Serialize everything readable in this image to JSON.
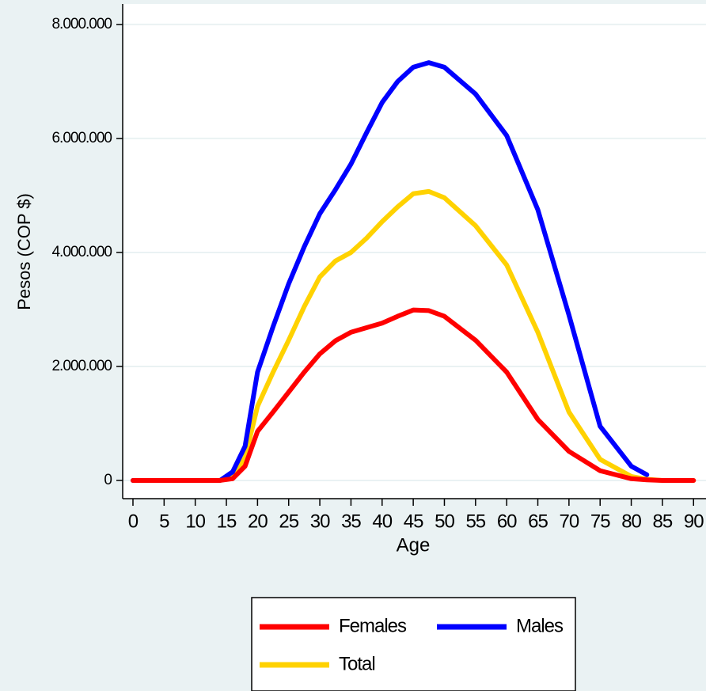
{
  "chart_data": {
    "type": "line",
    "y_label": "Pesos (COP $)",
    "x_label": "Age",
    "x": [
      0,
      5,
      10,
      14,
      16,
      18,
      20,
      22.5,
      25,
      27.5,
      30,
      32.5,
      35,
      37.5,
      40,
      42.5,
      45,
      47.5,
      50,
      55,
      60,
      65,
      70,
      75,
      80,
      82.5,
      85,
      90
    ],
    "series": [
      {
        "name": "Females",
        "color": "#ff0000",
        "values": [
          0,
          0,
          0,
          0,
          30000,
          250000,
          860000,
          1200000,
          1550000,
          1900000,
          2220000,
          2450000,
          2600000,
          2680000,
          2760000,
          2880000,
          2990000,
          2980000,
          2880000,
          2460000,
          1900000,
          1070000,
          510000,
          170000,
          30000,
          10000,
          0,
          0
        ]
      },
      {
        "name": "Males",
        "color": "#0000ff",
        "values": [
          0,
          0,
          0,
          0,
          150000,
          600000,
          1900000,
          2700000,
          3450000,
          4100000,
          4680000,
          5100000,
          5550000,
          6100000,
          6630000,
          7000000,
          7250000,
          7330000,
          7250000,
          6780000,
          6050000,
          4750000,
          2900000,
          950000,
          250000,
          100000,
          null,
          null
        ]
      },
      {
        "name": "Total",
        "color": "#ffd200",
        "values": [
          0,
          0,
          0,
          0,
          80000,
          400000,
          1300000,
          1900000,
          2460000,
          3050000,
          3570000,
          3850000,
          4000000,
          4250000,
          4540000,
          4800000,
          5030000,
          5070000,
          4960000,
          4470000,
          3780000,
          2600000,
          1200000,
          370000,
          70000,
          20000,
          0,
          0
        ]
      }
    ],
    "xlim": [
      -1.65,
      92
    ],
    "xticks": [
      0,
      5,
      10,
      15,
      20,
      25,
      30,
      35,
      40,
      45,
      50,
      55,
      60,
      65,
      70,
      75,
      80,
      85,
      90
    ],
    "ylim": [
      -320000,
      8360000
    ],
    "yticks": [
      0,
      {
        "value": 2000000,
        "label": "2.000.000"
      },
      {
        "value": 4000000,
        "label": "4.000.000"
      },
      {
        "value": 6000000,
        "label": "6.000.000"
      },
      {
        "value": 8000000,
        "label": "8.000.000"
      }
    ],
    "grid": true,
    "legend": "bottom"
  }
}
